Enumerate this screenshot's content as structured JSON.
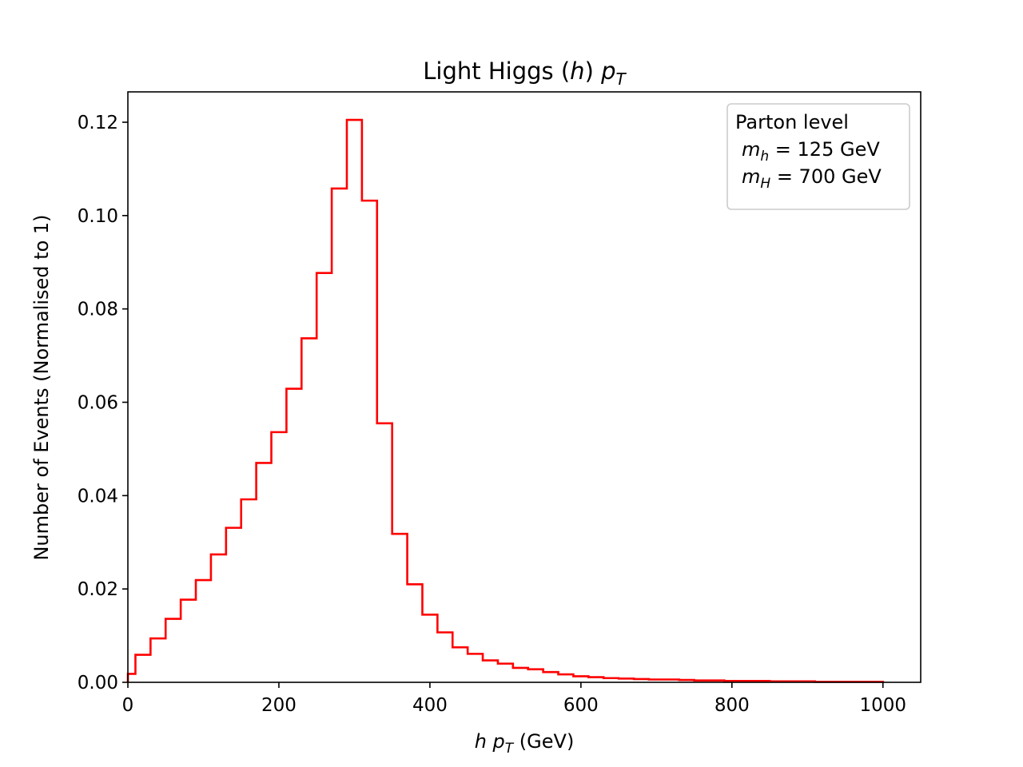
{
  "chart_data": {
    "type": "histogram",
    "title": "Light Higgs (h) p_T",
    "title_parts": {
      "prefix": "Light Higgs (",
      "h": "h",
      "suffix": ") ",
      "p": "p",
      "sub": "T"
    },
    "xlabel_parts": {
      "h": "h",
      "p": "p",
      "sub": "T",
      "unit": " (GeV)"
    },
    "ylabel": "Number of Events (Normalised to 1)",
    "xlim": [
      0,
      1050
    ],
    "ylim": [
      0,
      0.1265
    ],
    "xticks": [
      0,
      200,
      400,
      600,
      800,
      1000
    ],
    "yticks": [
      0.0,
      0.02,
      0.04,
      0.06,
      0.08,
      0.1,
      0.12
    ],
    "ytick_labels": [
      "0.00",
      "0.02",
      "0.04",
      "0.06",
      "0.08",
      "0.10",
      "0.12"
    ],
    "xtick_labels": [
      "0",
      "200",
      "400",
      "600",
      "800",
      "1000"
    ],
    "color": "#ff0000",
    "grid": false,
    "legend_position": "top-right",
    "legend": {
      "line1": "Parton level",
      "line2": {
        "m": "m",
        "sub": "h",
        "rest": " = 125 GeV"
      },
      "line3": {
        "m": "m",
        "sub": "H",
        "rest": " = 700 GeV"
      }
    },
    "bin_edges": [
      0,
      10,
      30,
      50,
      70,
      90,
      110,
      130,
      150,
      170,
      190,
      210,
      230,
      250,
      270,
      290,
      310,
      330,
      350,
      370,
      390,
      410,
      430,
      450,
      470,
      490,
      510,
      530,
      550,
      570,
      590,
      610,
      630,
      650,
      670,
      690,
      710,
      730,
      750,
      770,
      790,
      810,
      830,
      850,
      870,
      890,
      910,
      930,
      950,
      970,
      990,
      1000
    ],
    "values": [
      0.0018,
      0.0059,
      0.0094,
      0.0136,
      0.0177,
      0.0219,
      0.0274,
      0.0331,
      0.0392,
      0.047,
      0.0536,
      0.0629,
      0.0737,
      0.0877,
      0.1058,
      0.1205,
      0.1032,
      0.0555,
      0.0318,
      0.021,
      0.0145,
      0.0107,
      0.0075,
      0.0061,
      0.0047,
      0.004,
      0.0031,
      0.0028,
      0.0022,
      0.0017,
      0.0013,
      0.0011,
      0.0009,
      0.0008,
      0.0007,
      0.0006,
      0.0006,
      0.0005,
      0.0004,
      0.0004,
      0.0003,
      0.0003,
      0.0003,
      0.0002,
      0.0002,
      0.0002,
      0.0001,
      0.0001,
      0.0001,
      0.0001,
      0.0001
    ]
  }
}
